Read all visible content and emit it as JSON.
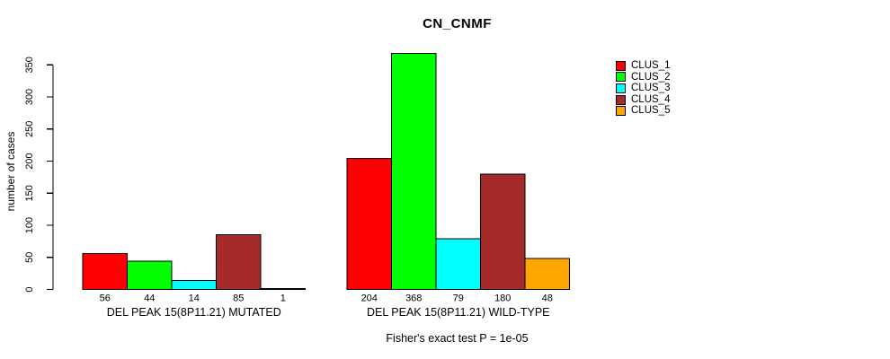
{
  "chart_data": {
    "type": "bar",
    "title": "CN_CNMF",
    "ylabel": "number of cases",
    "ylim": [
      0,
      350
    ],
    "yticks": [
      0,
      50,
      100,
      150,
      200,
      250,
      300,
      350
    ],
    "grid": false,
    "legend_position": "right-top",
    "series": [
      {
        "name": "CLUS_1",
        "color": "#FF0000"
      },
      {
        "name": "CLUS_2",
        "color": "#00FF00"
      },
      {
        "name": "CLUS_3",
        "color": "#00FFFF"
      },
      {
        "name": "CLUS_4",
        "color": "#A52A2A"
      },
      {
        "name": "CLUS_5",
        "color": "#FFA500"
      }
    ],
    "groups": [
      {
        "label": "DEL PEAK 15(8P11.21) MUTATED",
        "values": [
          56,
          44,
          14,
          85,
          1
        ]
      },
      {
        "label": "DEL PEAK 15(8P11.21) WILD-TYPE",
        "values": [
          204,
          368,
          79,
          180,
          48
        ]
      }
    ],
    "annotation": "Fisher's exact test P = 1e-05",
    "bar_border_color": "#000000",
    "axis_color": "#000000"
  }
}
